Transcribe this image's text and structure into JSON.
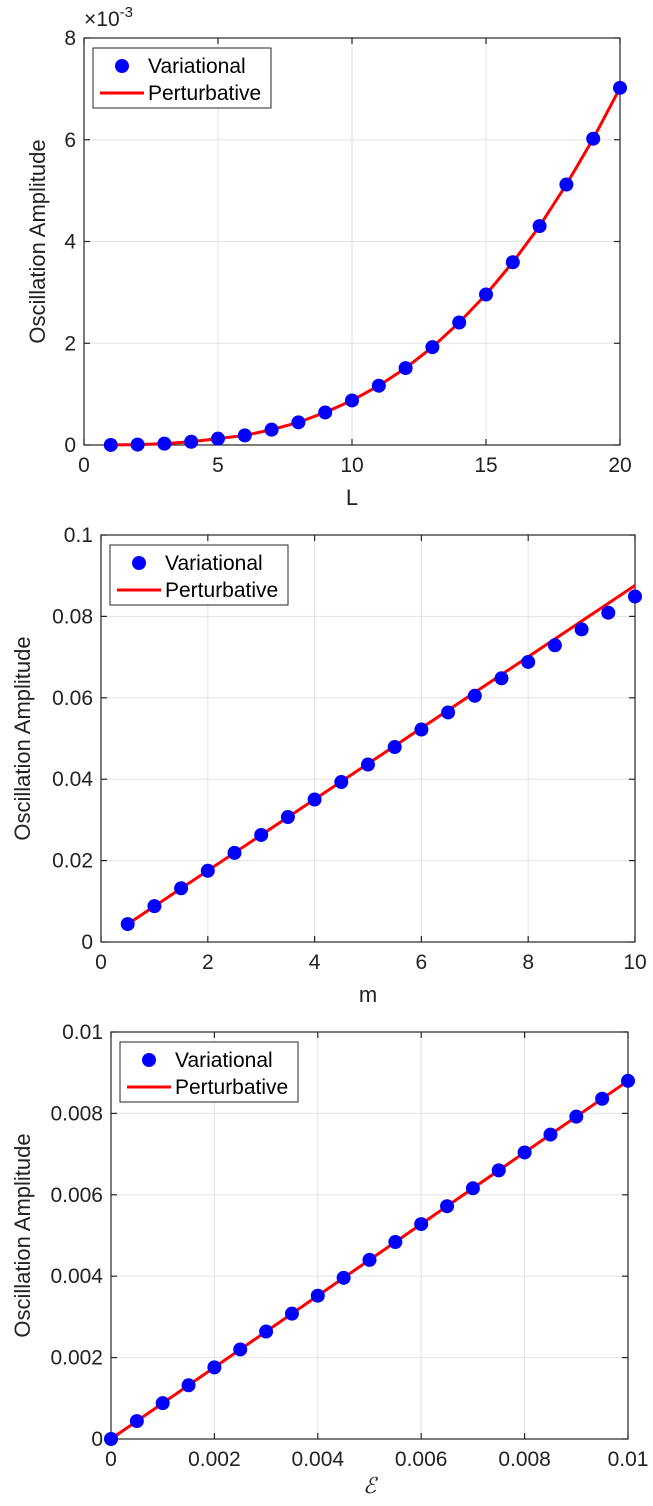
{
  "chart_data": [
    {
      "type": "line",
      "xlabel": "L",
      "ylabel": "Oscillation Amplitude",
      "xlim": [
        0,
        20
      ],
      "ylim": [
        0,
        0.008
      ],
      "y_exponent_label": "×10",
      "y_exponent_power": "-3",
      "x_tick_labels": [
        "0",
        "5",
        "10",
        "15",
        "20"
      ],
      "y_tick_labels": [
        "0",
        "2",
        "4",
        "6",
        "8"
      ],
      "x_ticks": [
        0,
        5,
        10,
        15,
        20
      ],
      "y_ticks": [
        0,
        0.002,
        0.004,
        0.006,
        0.008
      ],
      "grid": true,
      "legend_position": "top-left",
      "series": [
        {
          "name": "Variational",
          "style": "markers",
          "color": "#0000ff",
          "x": [
            1,
            2,
            3,
            4,
            5,
            6,
            7,
            8,
            9,
            10,
            11,
            12,
            13,
            14,
            15,
            16,
            17,
            18,
            19,
            20
          ],
          "values": [
            1e-06,
            8e-06,
            2.7e-05,
            6.4e-05,
            0.000125,
            0.000189,
            0.000301,
            0.000445,
            0.00064,
            0.000875,
            0.001165,
            0.001512,
            0.001923,
            0.002408,
            0.002958,
            0.003592,
            0.004303,
            0.00512,
            0.00602,
            0.00702
          ]
        },
        {
          "name": "Perturbative",
          "style": "line",
          "color": "#ff0000",
          "x": [
            1,
            2,
            3,
            4,
            5,
            6,
            7,
            8,
            9,
            10,
            11,
            12,
            13,
            14,
            15,
            16,
            17,
            18,
            19,
            20
          ],
          "values": [
            1e-06,
            8e-06,
            2.7e-05,
            6.4e-05,
            0.000125,
            0.000189,
            0.000301,
            0.000445,
            0.00064,
            0.000875,
            0.001165,
            0.001512,
            0.001923,
            0.002408,
            0.002958,
            0.003592,
            0.004303,
            0.00512,
            0.00602,
            0.00702
          ]
        }
      ]
    },
    {
      "type": "line",
      "xlabel": "m",
      "ylabel": "Oscillation Amplitude",
      "xlim": [
        0,
        10
      ],
      "ylim": [
        0,
        0.1
      ],
      "x_tick_labels": [
        "0",
        "2",
        "4",
        "6",
        "8",
        "10"
      ],
      "y_tick_labels": [
        "0",
        "0.02",
        "0.04",
        "0.06",
        "0.08",
        "0.1"
      ],
      "x_ticks": [
        0,
        2,
        4,
        6,
        8,
        10
      ],
      "y_ticks": [
        0,
        0.02,
        0.04,
        0.06,
        0.08,
        0.1
      ],
      "grid": true,
      "legend_position": "top-left",
      "series": [
        {
          "name": "Variational",
          "style": "markers",
          "color": "#0000ff",
          "x": [
            0.5,
            1,
            1.5,
            2,
            2.5,
            3,
            3.5,
            4,
            4.5,
            5,
            5.5,
            6,
            6.5,
            7,
            7.5,
            8,
            8.5,
            9,
            9.5,
            10
          ],
          "values": [
            0.0044,
            0.0088,
            0.0132,
            0.0175,
            0.0219,
            0.0263,
            0.0307,
            0.035,
            0.0393,
            0.0436,
            0.0479,
            0.0522,
            0.0564,
            0.0605,
            0.0648,
            0.0688,
            0.0729,
            0.0768,
            0.0809,
            0.0849
          ]
        },
        {
          "name": "Perturbative",
          "style": "line",
          "color": "#ff0000",
          "x": [
            0.5,
            10
          ],
          "values": [
            0.0044,
            0.0876
          ]
        }
      ]
    },
    {
      "type": "line",
      "xlabel": "ℰ",
      "ylabel": "Oscillation Amplitude",
      "xlim": [
        0,
        0.01
      ],
      "ylim": [
        0,
        0.01
      ],
      "x_tick_labels": [
        "0",
        "0.002",
        "0.004",
        "0.006",
        "0.008",
        "0.01"
      ],
      "y_tick_labels": [
        "0",
        "0.002",
        "0.004",
        "0.006",
        "0.008",
        "0.01"
      ],
      "x_ticks": [
        0,
        0.002,
        0.004,
        0.006,
        0.008,
        0.01
      ],
      "y_ticks": [
        0,
        0.002,
        0.004,
        0.006,
        0.008,
        0.01
      ],
      "grid": true,
      "legend_position": "top-left",
      "series": [
        {
          "name": "Variational",
          "style": "markers",
          "color": "#0000ff",
          "x": [
            0,
            0.0005,
            0.001,
            0.0015,
            0.002,
            0.0025,
            0.003,
            0.0035,
            0.004,
            0.0045,
            0.005,
            0.0055,
            0.006,
            0.0065,
            0.007,
            0.0075,
            0.008,
            0.0085,
            0.009,
            0.0095,
            0.01
          ],
          "values": [
            0,
            0.00044,
            0.00088,
            0.00132,
            0.00176,
            0.0022,
            0.00264,
            0.00308,
            0.00352,
            0.00396,
            0.0044,
            0.00484,
            0.00528,
            0.00572,
            0.00616,
            0.0066,
            0.00704,
            0.00748,
            0.00792,
            0.00836,
            0.0088
          ]
        },
        {
          "name": "Perturbative",
          "style": "line",
          "color": "#ff0000",
          "x": [
            0,
            0.01
          ],
          "values": [
            0,
            0.0088
          ]
        }
      ]
    }
  ]
}
